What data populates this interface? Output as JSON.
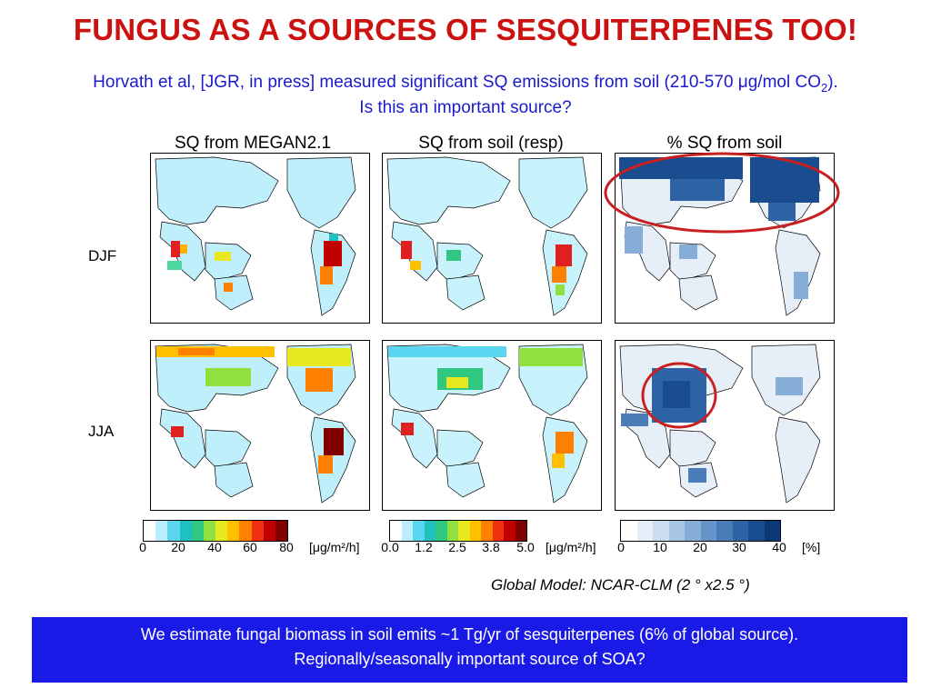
{
  "slide": {
    "title": "FUNGUS AS A SOURCES OF SESQUITERPENES TOO!",
    "subtitle_line1": "Horvath et al, [JGR, in press] measured significant SQ emissions from soil (210-570 μg/mol CO",
    "subtitle_sub": "2",
    "subtitle_end": ").",
    "subtitle_line2": "Is this an important source?",
    "model_caption": "Global Model: NCAR-CLM (2 ° x2.5 °)",
    "note_line1": "We estimate fungal biomass in soil emits ~1 Tg/yr of sesquiterpenes (6% of global source).",
    "note_line2": "Regionally/seasonally important source of SOA?"
  },
  "columns": [
    "SQ from MEGAN2.1",
    "SQ from soil (resp)",
    "% SQ from soil"
  ],
  "rows": [
    "DJF",
    "JJA"
  ],
  "colorbars": [
    {
      "ticks": [
        "0",
        "20",
        "40",
        "60",
        "80"
      ],
      "unit": "[μg/m²/h]",
      "colors": [
        "#ffffff",
        "#b8eeff",
        "#5ad6f0",
        "#20c0c0",
        "#30c880",
        "#90e040",
        "#e8e820",
        "#ffc000",
        "#ff8000",
        "#f03010",
        "#c00000",
        "#800000"
      ]
    },
    {
      "ticks": [
        "0.0",
        "1.2",
        "2.5",
        "3.8",
        "5.0"
      ],
      "unit": "[μg/m²/h]",
      "colors": [
        "#ffffff",
        "#b8eeff",
        "#5ad6f0",
        "#20c0c0",
        "#30c880",
        "#90e040",
        "#e8e820",
        "#ffc000",
        "#ff8000",
        "#f03010",
        "#c00000",
        "#800000"
      ]
    },
    {
      "ticks": [
        "0",
        "10",
        "20",
        "30",
        "40"
      ],
      "unit": "[%]",
      "colors": [
        "#ffffff",
        "#e6eef8",
        "#ccdcf0",
        "#aac6e6",
        "#86acd8",
        "#6694c8",
        "#4a7cb8",
        "#2e64a6",
        "#1a4c90",
        "#0c3878"
      ]
    }
  ]
}
